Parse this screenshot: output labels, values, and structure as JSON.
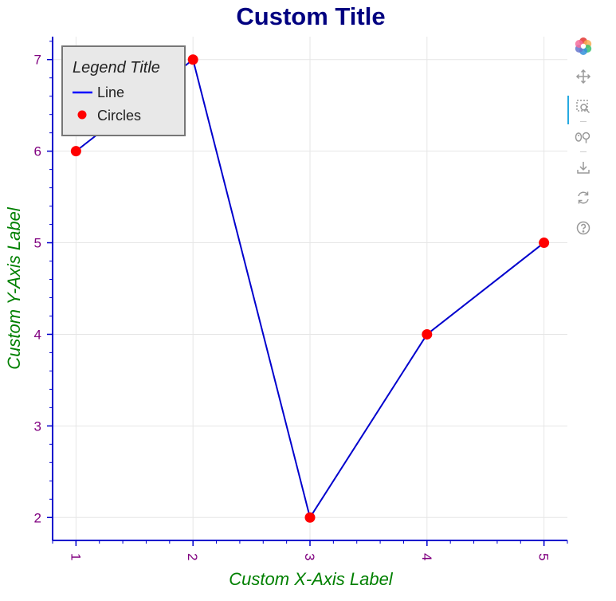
{
  "chart_data": {
    "type": "line",
    "title": "Custom Title",
    "xlabel": "Custom X-Axis Label",
    "ylabel": "Custom Y-Axis Label",
    "x": [
      1,
      2,
      3,
      4,
      5
    ],
    "xlim": [
      0.8,
      5.2
    ],
    "ylim": [
      1.75,
      7.25
    ],
    "xticks": [
      "1",
      "2",
      "3",
      "4",
      "5"
    ],
    "yticks": [
      "2",
      "3",
      "4",
      "5",
      "6",
      "7"
    ],
    "grid": true,
    "legend": {
      "title": "Legend Title",
      "placement": "top-left",
      "items": [
        {
          "label": "Line",
          "kind": "line",
          "color": "#0000ff"
        },
        {
          "label": "Circles",
          "kind": "circle",
          "color": "#ff0000"
        }
      ]
    },
    "series": [
      {
        "name": "Line",
        "kind": "line",
        "values": [
          6,
          7,
          2,
          4,
          5
        ],
        "color": "#0000cd"
      },
      {
        "name": "Circles",
        "kind": "circle",
        "values": [
          6,
          7,
          2,
          4,
          5
        ],
        "color": "#ff0000"
      }
    ],
    "colors": {
      "title": "#000080",
      "axis_label": "#008000",
      "tick_label": "#800080",
      "axis_line": "#0000cd",
      "grid": "#e6e6e6"
    }
  },
  "toolbar": {
    "tools": [
      "bokeh-logo-icon",
      "pan-icon",
      "box-zoom-icon",
      "wheel-zoom-icon",
      "save-icon",
      "reset-icon",
      "help-icon"
    ]
  }
}
